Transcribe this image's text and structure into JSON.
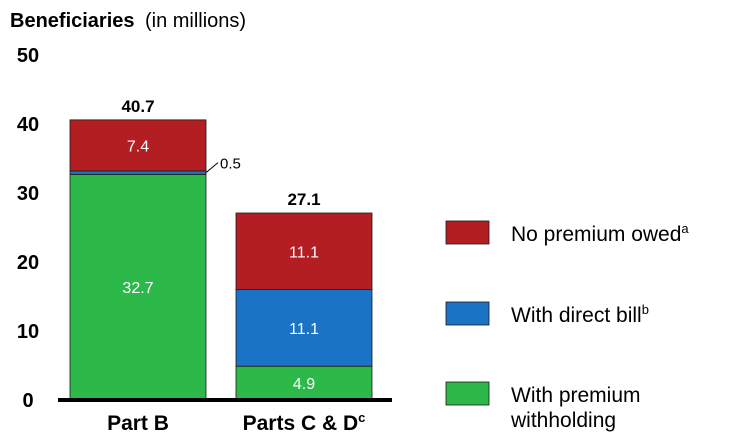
{
  "chart_data": {
    "type": "bar",
    "stacked": true,
    "title": "Beneficiaries",
    "subtitle": "(in millions)",
    "categories": [
      "Part B",
      "Parts C & D"
    ],
    "category_superscripts": [
      "",
      "c"
    ],
    "y_ticks": [
      "0",
      "10",
      "20",
      "30",
      "40",
      "50"
    ],
    "ylim": [
      0,
      50
    ],
    "totals": [
      "40.7",
      "27.1"
    ],
    "series": [
      {
        "name": "With premium withholding",
        "name_lines": [
          "With premium",
          "withholding"
        ],
        "superscript": "",
        "color": "#2db84a",
        "values": [
          32.7,
          4.9
        ],
        "labels": [
          "32.7",
          "4.9"
        ]
      },
      {
        "name": "With direct bill",
        "name_lines": [
          "With direct bill"
        ],
        "superscript": "b",
        "color": "#1a73c5",
        "values": [
          0.5,
          11.1
        ],
        "labels": [
          "0.5",
          "11.1"
        ]
      },
      {
        "name": "No premium owed",
        "name_lines": [
          "No premium owed"
        ],
        "superscript": "a",
        "color": "#b31e23",
        "values": [
          7.4,
          11.1
        ],
        "labels": [
          "7.4",
          "11.1"
        ]
      }
    ],
    "legend_position": "right",
    "grid": false
  }
}
